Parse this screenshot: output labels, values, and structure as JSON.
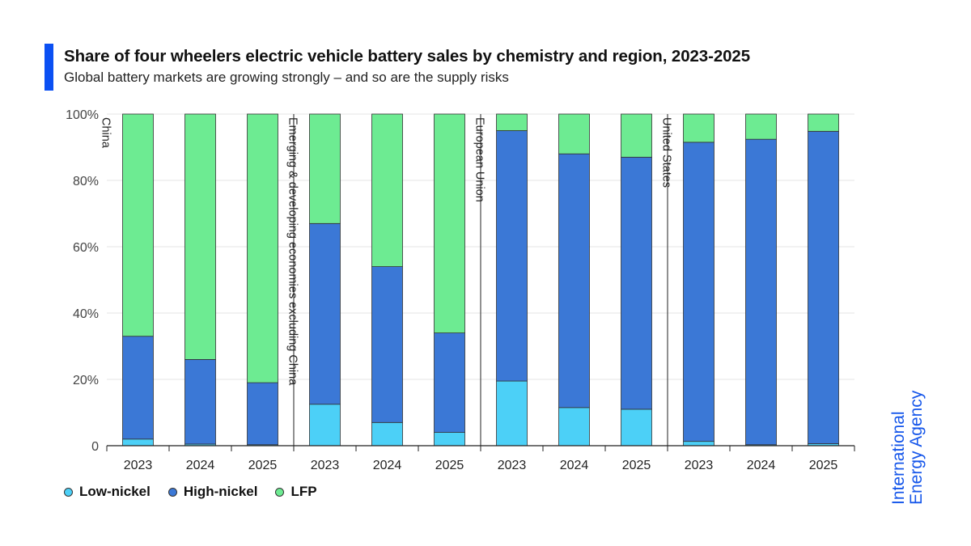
{
  "title": "Share of four wheelers electric vehicle battery sales by chemistry and region, 2023-2025",
  "subtitle": "Global battery markets are growing strongly – and so are the supply risks",
  "brand": {
    "line1": "International",
    "line2": "Energy Agency"
  },
  "colors": {
    "accent": "#0b50f3",
    "low_nickel": "#4cd0f7",
    "high_nickel": "#3b78d6",
    "lfp": "#6deb92",
    "brand": "#1556ea"
  },
  "chart_data": {
    "type": "bar",
    "stacked": true,
    "title": "Share of four wheelers electric vehicle battery sales by chemistry and region, 2023-2025",
    "xlabel": "",
    "ylabel": "",
    "ylim": [
      0,
      100
    ],
    "yticks": [
      0,
      20,
      40,
      60,
      80,
      100
    ],
    "ytick_labels": [
      "0",
      "20%",
      "40%",
      "60%",
      "80%",
      "100%"
    ],
    "grid": true,
    "legend": "bottom-left",
    "series_names": [
      "Low-nickel",
      "High-nickel",
      "LFP"
    ],
    "groups": [
      {
        "name": "China",
        "categories": [
          "2023",
          "2024",
          "2025"
        ],
        "series": [
          {
            "name": "Low-nickel",
            "values": [
              2,
              0.5,
              0.3
            ]
          },
          {
            "name": "High-nickel",
            "values": [
              31,
              25.5,
              18.7
            ]
          },
          {
            "name": "LFP",
            "values": [
              67,
              74,
              81
            ]
          }
        ]
      },
      {
        "name": "Emerging & developing economies excluding China",
        "categories": [
          "2023",
          "2024",
          "2025"
        ],
        "series": [
          {
            "name": "Low-nickel",
            "values": [
              12.5,
              7,
              4
            ]
          },
          {
            "name": "High-nickel",
            "values": [
              54.5,
              47,
              30
            ]
          },
          {
            "name": "LFP",
            "values": [
              33,
              46,
              66
            ]
          }
        ]
      },
      {
        "name": "European Union",
        "categories": [
          "2023",
          "2024",
          "2025"
        ],
        "series": [
          {
            "name": "Low-nickel",
            "values": [
              19.5,
              11.5,
              11
            ]
          },
          {
            "name": "High-nickel",
            "values": [
              75.5,
              76.5,
              76
            ]
          },
          {
            "name": "LFP",
            "values": [
              5,
              12,
              13
            ]
          }
        ]
      },
      {
        "name": "United States",
        "categories": [
          "2023",
          "2024",
          "2025"
        ],
        "series": [
          {
            "name": "Low-nickel",
            "values": [
              1.3,
              0.3,
              0.6
            ]
          },
          {
            "name": "High-nickel",
            "values": [
              90.2,
              92.1,
              94.2
            ]
          },
          {
            "name": "LFP",
            "values": [
              8.5,
              7.6,
              5.2
            ]
          }
        ]
      }
    ]
  }
}
